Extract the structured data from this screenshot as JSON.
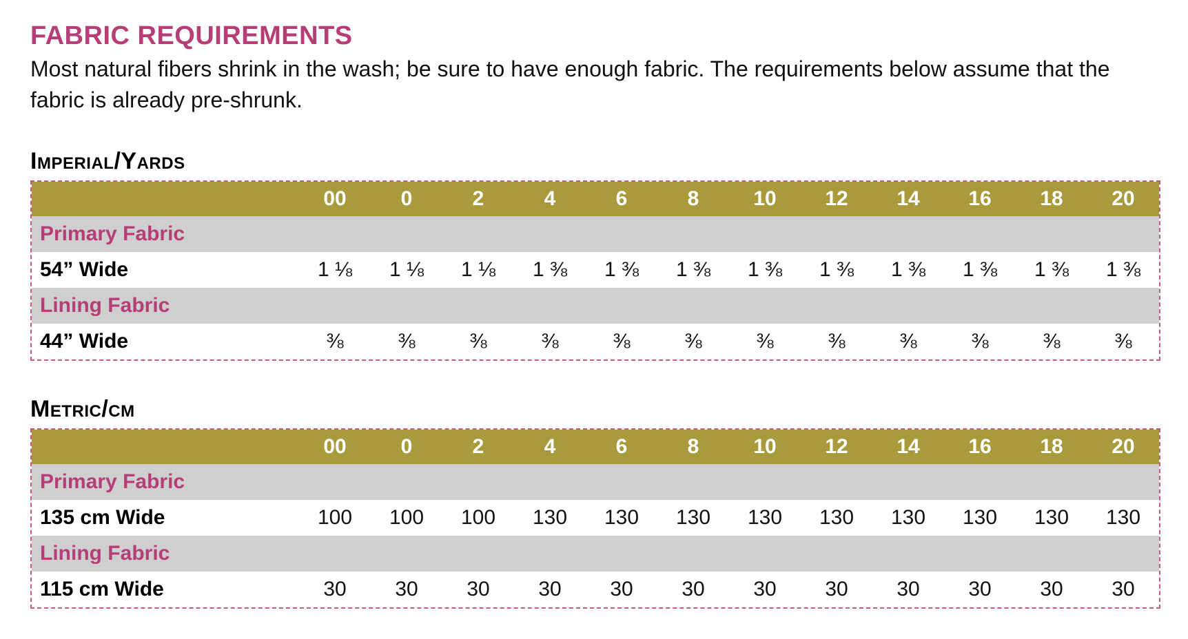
{
  "heading": "FABRIC REQUIREMENTS",
  "intro": "Most natural fibers shrink in the wash; be sure to have enough fabric. The requirements below assume that the fabric is already pre-shrunk.",
  "sizes": [
    "00",
    "0",
    "2",
    "4",
    "6",
    "8",
    "10",
    "12",
    "14",
    "16",
    "18",
    "20"
  ],
  "imperial": {
    "title": "Imperial/Yards",
    "primary_label": "Primary Fabric",
    "primary_width": "54” Wide",
    "primary_values": [
      "1 ⅛",
      "1 ⅛",
      "1 ⅛",
      "1 ⅜",
      "1 ⅜",
      "1 ⅜",
      "1 ⅜",
      "1 ⅜",
      "1 ⅜",
      "1 ⅜",
      "1 ⅜",
      "1 ⅜"
    ],
    "lining_label": "Lining Fabric",
    "lining_width": "44” Wide",
    "lining_values": [
      "⅜",
      "⅜",
      "⅜",
      "⅜",
      "⅜",
      "⅜",
      "⅜",
      "⅜",
      "⅜",
      "⅜",
      "⅜",
      "⅜"
    ]
  },
  "metric": {
    "title": "Metric/cm",
    "primary_label": "Primary Fabric",
    "primary_width": "135 cm Wide",
    "primary_values": [
      "100",
      "100",
      "100",
      "130",
      "130",
      "130",
      "130",
      "130",
      "130",
      "130",
      "130",
      "130"
    ],
    "lining_label": "Lining Fabric",
    "lining_width": "115 cm Wide",
    "lining_values": [
      "30",
      "30",
      "30",
      "30",
      "30",
      "30",
      "30",
      "30",
      "30",
      "30",
      "30",
      "30"
    ]
  },
  "colors": {
    "accent": "#b63d76",
    "header_band": "#a99b3c",
    "group_band": "#cfcfcf"
  }
}
